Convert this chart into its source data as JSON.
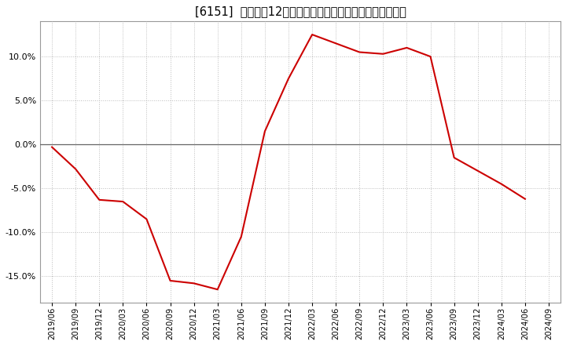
{
  "title": "[6151]  売上高の12か月移動合計の対前年同期増減率の推移",
  "line_color": "#cc0000",
  "background_color": "#ffffff",
  "plot_bg_color": "#ffffff",
  "grid_color": "#bbbbbb",
  "zero_line_color": "#666666",
  "dates": [
    "2019/06",
    "2019/09",
    "2019/12",
    "2020/03",
    "2020/06",
    "2020/09",
    "2020/12",
    "2021/03",
    "2021/06",
    "2021/09",
    "2021/12",
    "2022/03",
    "2022/06",
    "2022/09",
    "2022/12",
    "2023/03",
    "2023/06",
    "2023/09",
    "2023/12",
    "2024/03",
    "2024/06",
    "2024/09"
  ],
  "values": [
    -0.3,
    -2.8,
    -6.3,
    -6.5,
    -8.5,
    -15.5,
    -15.8,
    -16.5,
    -10.5,
    1.5,
    7.5,
    12.5,
    11.5,
    10.5,
    10.3,
    11.0,
    10.0,
    -1.5,
    -3.0,
    -4.5,
    -6.2,
    null
  ],
  "ylim": [
    -18,
    14
  ],
  "yticks": [
    -15.0,
    -10.0,
    -5.0,
    0.0,
    5.0,
    10.0
  ],
  "title_fontsize": 10.5
}
